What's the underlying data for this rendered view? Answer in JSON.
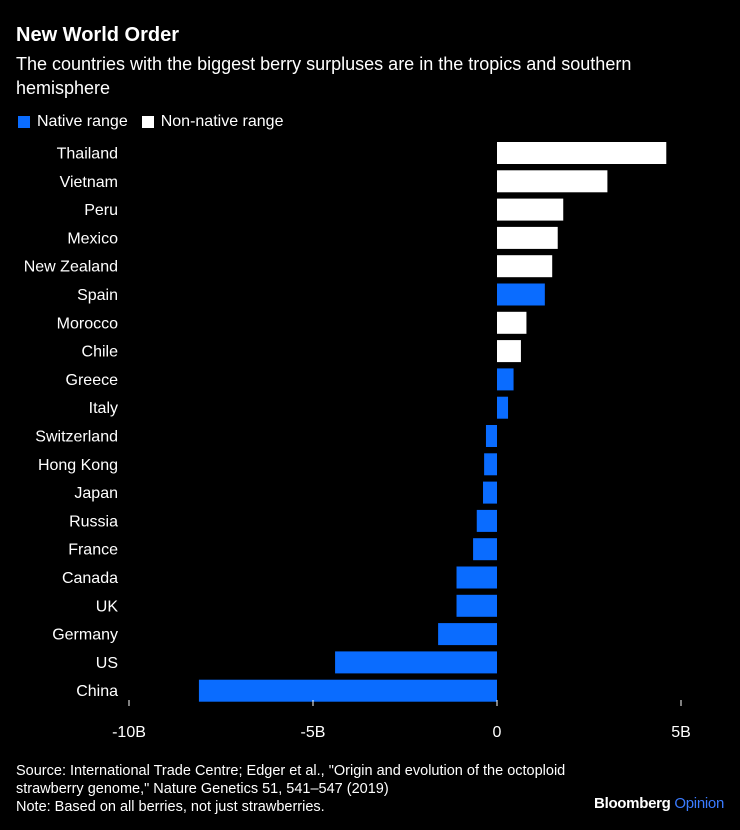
{
  "title": "New World Order",
  "subtitle": "The countries with the biggest berry surpluses are in the tropics and southern hemisphere",
  "legend": {
    "native": {
      "label": "Native range",
      "color": "#0a6cff"
    },
    "non_native": {
      "label": "Non-native range",
      "color": "#ffffff"
    }
  },
  "chart_data": {
    "type": "bar",
    "orientation": "horizontal",
    "categories": [
      "Thailand",
      "Vietnam",
      "Peru",
      "Mexico",
      "New Zealand",
      "Spain",
      "Morocco",
      "Chile",
      "Greece",
      "Italy",
      "Switzerland",
      "Hong Kong",
      "Japan",
      "Russia",
      "France",
      "Canada",
      "UK",
      "Germany",
      "US",
      "China"
    ],
    "values": [
      4.6,
      3.0,
      1.8,
      1.65,
      1.5,
      1.3,
      0.8,
      0.65,
      0.45,
      0.3,
      -0.3,
      -0.35,
      -0.38,
      -0.55,
      -0.65,
      -1.1,
      -1.1,
      -1.6,
      -4.4,
      -8.1
    ],
    "range": [
      "non_native",
      "non_native",
      "non_native",
      "non_native",
      "non_native",
      "native",
      "non_native",
      "non_native",
      "native",
      "native",
      "native",
      "native",
      "native",
      "native",
      "native",
      "native",
      "native",
      "native",
      "native",
      "native"
    ],
    "xlim": [
      -10,
      5
    ],
    "xticks": [
      -10,
      -5,
      0,
      5
    ],
    "xtick_labels": [
      "-10B",
      "-5B",
      "0",
      "5B"
    ],
    "unit": "B"
  },
  "footer": {
    "source": "Source: International Trade Centre; Edger et al., \"Origin and evolution of the octoploid strawberry genome,\" Nature Genetics 51, 541–547 (2019)",
    "note": "Note: Based on all berries, not just strawberries."
  },
  "brand": {
    "name": "Bloomberg",
    "suffix": "Opinion"
  }
}
